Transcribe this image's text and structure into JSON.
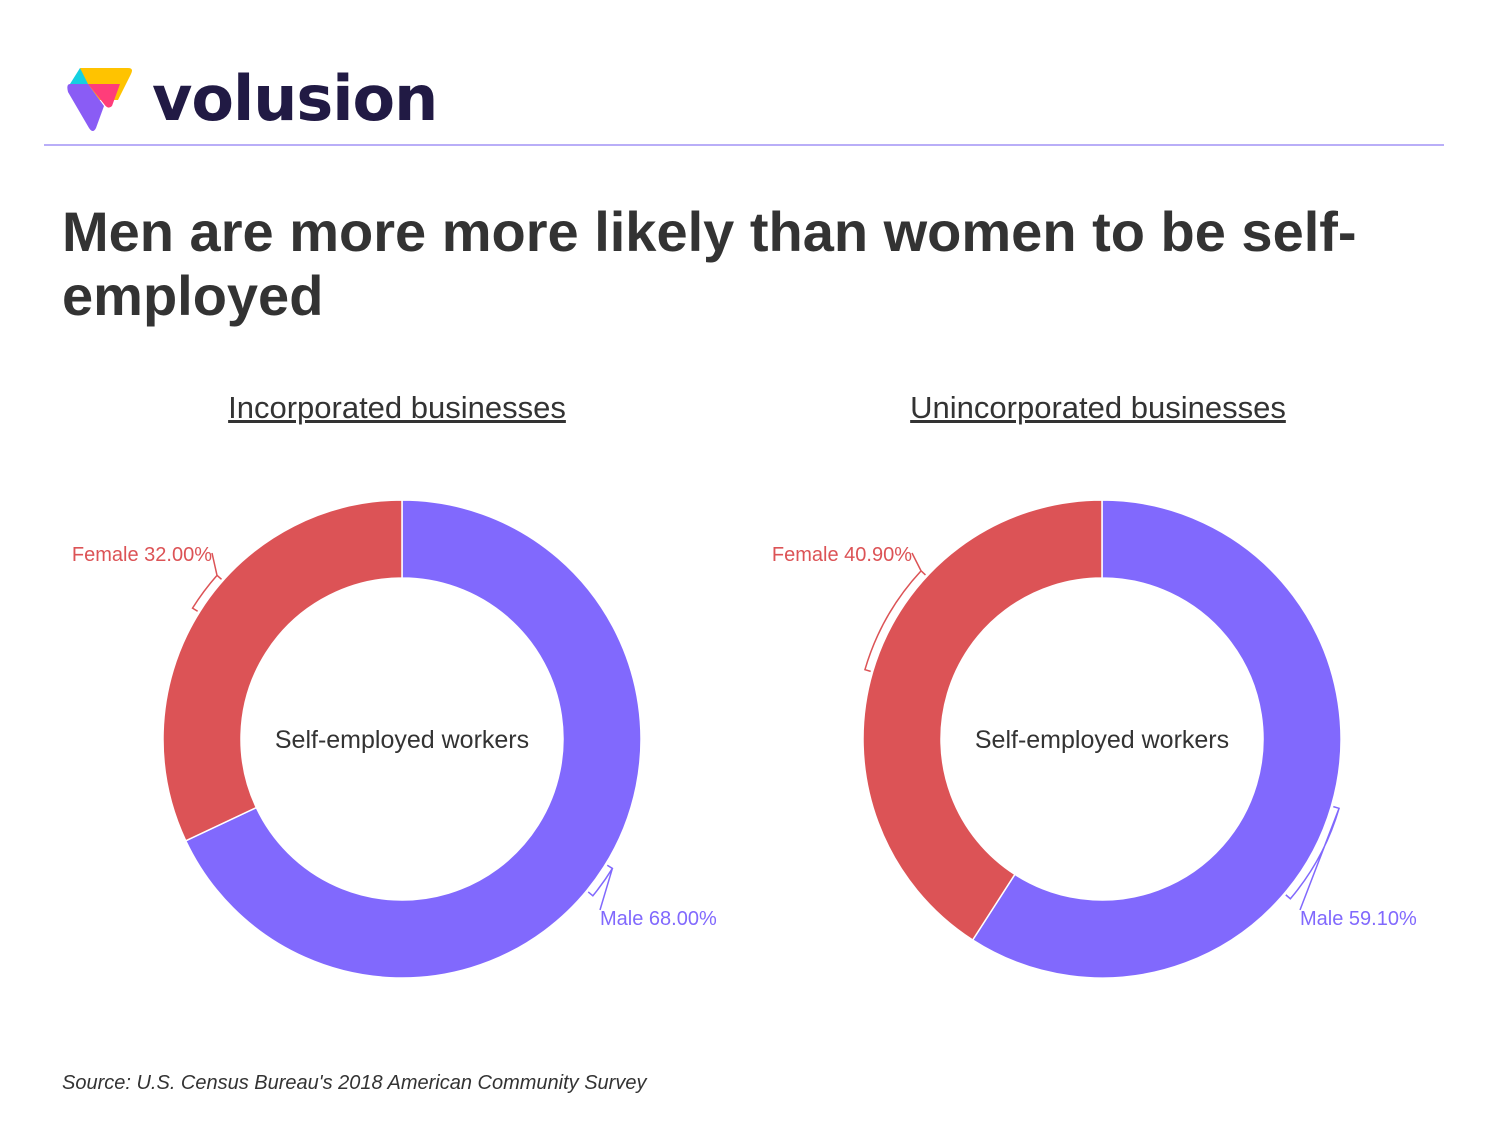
{
  "brand": {
    "name": "volusion"
  },
  "title": "Men are more more likely than women to be self-employed",
  "source": "Source:  U.S. Census Bureau's 2018 American Community Survey",
  "chart_data": [
    {
      "type": "pie",
      "subtype": "donut",
      "title": "Incorporated businesses",
      "center_label": "Self-employed workers",
      "categories": [
        "Male",
        "Female"
      ],
      "values": [
        68.0,
        32.0
      ],
      "labels": [
        "Male 68.00%",
        "Female 32.00%"
      ],
      "colors": [
        "#8169fd",
        "#dc5356"
      ]
    },
    {
      "type": "pie",
      "subtype": "donut",
      "title": "Unincorporated businesses",
      "center_label": "Self-employed workers",
      "categories": [
        "Male",
        "Female"
      ],
      "values": [
        59.1,
        40.9
      ],
      "labels": [
        "Male 59.10%",
        "Female 40.90%"
      ],
      "colors": [
        "#8169fd",
        "#dc5356"
      ]
    }
  ]
}
